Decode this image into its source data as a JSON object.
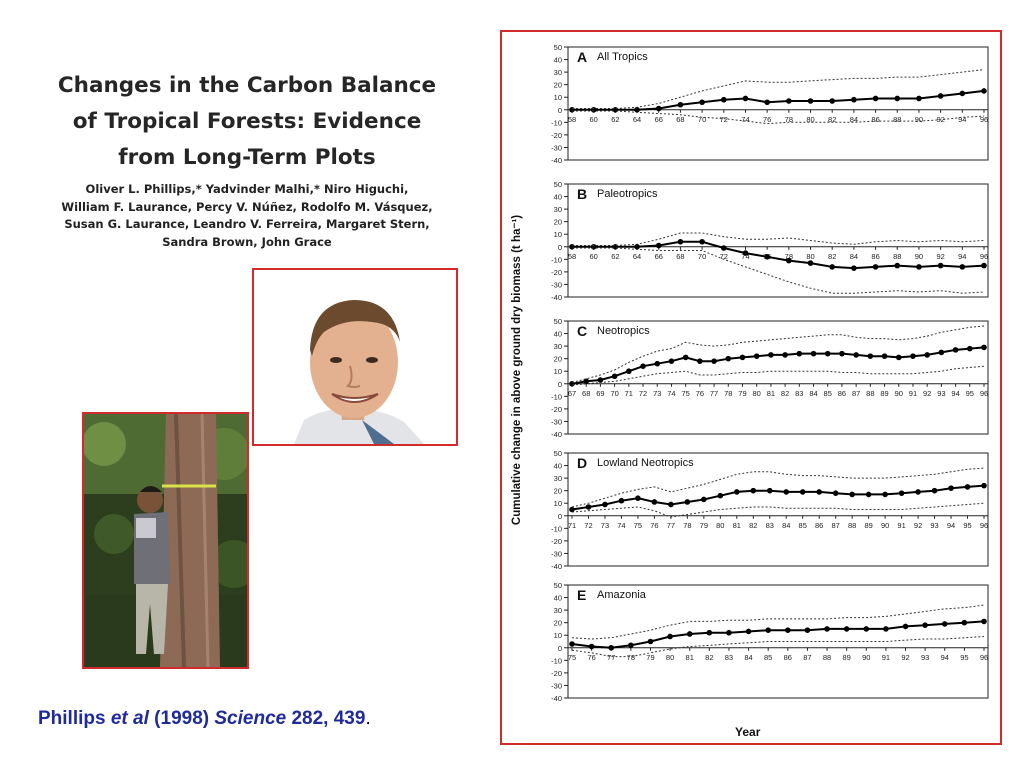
{
  "paper": {
    "title_lines": [
      "Changes in the Carbon Balance",
      "of Tropical Forests: Evidence",
      "from Long-Term Plots"
    ],
    "author_lines": [
      "Oliver L. Phillips,* Yadvinder Malhi,* Niro Higuchi,",
      "William F. Laurance, Percy V. Núñez, Rodolfo M. Vásquez,",
      "Susan G. Laurance, Leandro V. Ferreira, Margaret Stern,",
      "Sandra Brown, John Grace"
    ]
  },
  "citation": {
    "author": "Phillips ",
    "etal": "et al",
    "year": " (1998) ",
    "journal": "Science",
    "volume": " 282, 439",
    "end": "."
  },
  "colors": {
    "frame": "#d22b2b",
    "citation": "#1f2b9a"
  },
  "chart_data": [
    {
      "type": "line",
      "panel": "A",
      "title": "All Tropics",
      "ylim": [
        -40,
        50
      ],
      "y_ticks": [
        -40,
        -30,
        -20,
        -10,
        0,
        10,
        20,
        30,
        40,
        50
      ],
      "x_ticks": [
        "58",
        "60",
        "62",
        "64",
        "66",
        "68",
        "70",
        "72",
        "74",
        "76",
        "78",
        "80",
        "82",
        "84",
        "86",
        "88",
        "90",
        "92",
        "94",
        "96"
      ],
      "x": [
        58,
        60,
        62,
        64,
        66,
        68,
        70,
        72,
        74,
        76,
        78,
        80,
        82,
        84,
        86,
        88,
        90,
        92,
        94,
        96
      ],
      "series": [
        {
          "values": [
            0,
            0,
            0,
            0,
            1,
            4,
            6,
            8,
            9,
            6,
            7,
            7,
            7,
            8,
            9,
            9,
            9,
            11,
            13,
            15
          ],
          "style": "solid"
        },
        {
          "values": [
            1,
            1,
            1,
            2,
            5,
            10,
            15,
            19,
            23,
            22,
            22,
            23,
            24,
            25,
            25,
            26,
            26,
            28,
            30,
            32
          ],
          "style": "dotted"
        },
        {
          "values": [
            -1,
            -1,
            -1,
            -2,
            -3,
            -4,
            -6,
            -7,
            -9,
            -11,
            -10,
            -10,
            -10,
            -10,
            -9,
            -9,
            -9,
            -8,
            -6,
            -5
          ],
          "style": "dotted"
        }
      ]
    },
    {
      "type": "line",
      "panel": "B",
      "title": "Paleotropics",
      "ylim": [
        -40,
        50
      ],
      "y_ticks": [
        -40,
        -30,
        -20,
        -10,
        0,
        10,
        20,
        30,
        40,
        50
      ],
      "x_ticks": [
        "58",
        "60",
        "62",
        "64",
        "66",
        "68",
        "70",
        "72",
        "74",
        "76",
        "78",
        "80",
        "82",
        "84",
        "86",
        "88",
        "90",
        "92",
        "94",
        "96"
      ],
      "x": [
        58,
        60,
        62,
        64,
        66,
        68,
        70,
        72,
        74,
        76,
        78,
        80,
        82,
        84,
        86,
        88,
        90,
        92,
        94,
        96
      ],
      "series": [
        {
          "values": [
            0,
            0,
            0,
            0,
            1,
            4,
            4,
            -1,
            -5,
            -8,
            -11,
            -13,
            -16,
            -17,
            -16,
            -15,
            -16,
            -15,
            -16,
            -15
          ],
          "style": "solid"
        },
        {
          "values": [
            1,
            1,
            1,
            2,
            6,
            11,
            11,
            8,
            6,
            6,
            7,
            5,
            3,
            2,
            4,
            5,
            4,
            5,
            4,
            5
          ],
          "style": "dotted"
        },
        {
          "values": [
            -1,
            -1,
            -1,
            -2,
            -3,
            -3,
            -3,
            -10,
            -16,
            -22,
            -28,
            -33,
            -37,
            -37,
            -36,
            -35,
            -36,
            -35,
            -37,
            -36
          ],
          "style": "dotted"
        }
      ]
    },
    {
      "type": "line",
      "panel": "C",
      "title": "Neotropics",
      "ylim": [
        -40,
        50
      ],
      "y_ticks": [
        -40,
        -30,
        -20,
        -10,
        0,
        10,
        20,
        30,
        40,
        50
      ],
      "x_ticks": [
        "67",
        "68",
        "69",
        "70",
        "71",
        "72",
        "73",
        "74",
        "75",
        "76",
        "77",
        "78",
        "79",
        "80",
        "81",
        "82",
        "83",
        "84",
        "85",
        "86",
        "87",
        "88",
        "89",
        "90",
        "91",
        "92",
        "93",
        "94",
        "95",
        "96"
      ],
      "x": [
        67,
        68,
        69,
        70,
        71,
        72,
        73,
        74,
        75,
        76,
        77,
        78,
        79,
        80,
        81,
        82,
        83,
        84,
        85,
        86,
        87,
        88,
        89,
        90,
        91,
        92,
        93,
        94,
        95,
        96
      ],
      "series": [
        {
          "values": [
            0,
            2,
            3,
            6,
            10,
            14,
            16,
            18,
            21,
            18,
            18,
            20,
            21,
            22,
            23,
            23,
            24,
            24,
            24,
            24,
            23,
            22,
            22,
            21,
            22,
            23,
            25,
            27,
            28,
            29
          ],
          "style": "solid"
        },
        {
          "values": [
            1,
            4,
            7,
            11,
            17,
            22,
            26,
            28,
            33,
            31,
            30,
            31,
            33,
            34,
            35,
            36,
            37,
            38,
            39,
            39,
            37,
            36,
            36,
            35,
            36,
            38,
            41,
            43,
            45,
            46
          ],
          "style": "dotted"
        },
        {
          "values": [
            -1,
            0,
            1,
            2,
            4,
            6,
            8,
            9,
            10,
            7,
            7,
            8,
            9,
            9,
            10,
            10,
            10,
            10,
            10,
            9,
            9,
            8,
            8,
            8,
            8,
            9,
            10,
            12,
            13,
            14
          ],
          "style": "dotted"
        }
      ]
    },
    {
      "type": "line",
      "panel": "D",
      "title": "Lowland Neotropics",
      "ylim": [
        -40,
        50
      ],
      "y_ticks": [
        -40,
        -30,
        -20,
        -10,
        0,
        10,
        20,
        30,
        40,
        50
      ],
      "x_ticks": [
        "71",
        "72",
        "73",
        "74",
        "75",
        "76",
        "77",
        "78",
        "79",
        "80",
        "81",
        "82",
        "83",
        "84",
        "85",
        "86",
        "87",
        "88",
        "89",
        "90",
        "91",
        "92",
        "93",
        "94",
        "95",
        "96"
      ],
      "x": [
        71,
        72,
        73,
        74,
        75,
        76,
        77,
        78,
        79,
        80,
        81,
        82,
        83,
        84,
        85,
        86,
        87,
        88,
        89,
        90,
        91,
        92,
        93,
        94,
        95,
        96
      ],
      "series": [
        {
          "values": [
            5,
            7,
            9,
            12,
            14,
            11,
            9,
            11,
            13,
            16,
            19,
            20,
            20,
            19,
            19,
            19,
            18,
            17,
            17,
            17,
            18,
            19,
            20,
            22,
            23,
            24
          ],
          "style": "solid"
        },
        {
          "values": [
            7,
            10,
            14,
            18,
            21,
            23,
            19,
            22,
            25,
            29,
            33,
            35,
            35,
            33,
            32,
            32,
            31,
            30,
            30,
            30,
            31,
            32,
            33,
            35,
            37,
            38
          ],
          "style": "dotted"
        },
        {
          "values": [
            3,
            4,
            5,
            6,
            7,
            4,
            -1,
            1,
            3,
            5,
            6,
            7,
            7,
            6,
            6,
            6,
            6,
            5,
            5,
            5,
            5,
            6,
            7,
            8,
            9,
            10
          ],
          "style": "dotted"
        }
      ]
    },
    {
      "type": "line",
      "panel": "E",
      "title": "Amazonia",
      "ylim": [
        -40,
        50
      ],
      "y_ticks": [
        -40,
        -30,
        -20,
        -10,
        0,
        10,
        20,
        30,
        40,
        50
      ],
      "x_ticks": [
        "75",
        "76",
        "77",
        "78",
        "79",
        "80",
        "81",
        "82",
        "83",
        "84",
        "85",
        "86",
        "87",
        "88",
        "89",
        "90",
        "91",
        "92",
        "93",
        "94",
        "95",
        "96"
      ],
      "x": [
        75,
        76,
        77,
        78,
        79,
        80,
        81,
        82,
        83,
        84,
        85,
        86,
        87,
        88,
        89,
        90,
        91,
        92,
        93,
        94,
        95,
        96
      ],
      "series": [
        {
          "values": [
            3,
            1,
            0,
            2,
            5,
            9,
            11,
            12,
            12,
            13,
            14,
            14,
            14,
            15,
            15,
            15,
            15,
            17,
            18,
            19,
            20,
            21
          ],
          "style": "solid"
        },
        {
          "values": [
            8,
            7,
            8,
            11,
            14,
            18,
            21,
            21,
            22,
            22,
            23,
            23,
            23,
            23,
            24,
            24,
            25,
            27,
            29,
            31,
            32,
            34
          ],
          "style": "dotted"
        },
        {
          "values": [
            -2,
            -4,
            -7,
            -7,
            -4,
            -1,
            1,
            2,
            3,
            4,
            5,
            5,
            5,
            5,
            5,
            5,
            5,
            6,
            7,
            7,
            8,
            9
          ],
          "style": "dotted"
        }
      ]
    }
  ],
  "axes": {
    "ylabel": "Cumulative change in above ground dry biomass (t ha⁻¹)",
    "xlabel": "Year"
  }
}
